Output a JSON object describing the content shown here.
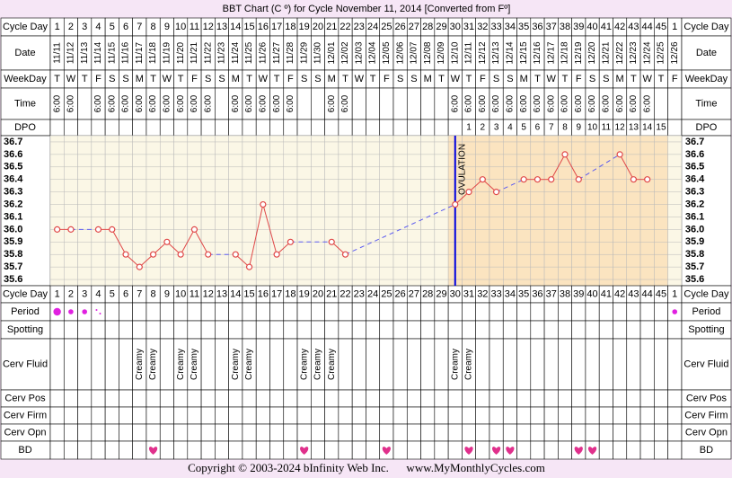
{
  "chart_data": {
    "type": "line",
    "title": "BBT Chart (C º) for Cycle November 11, 2014  [Converted from Fº]",
    "row_labels": {
      "cycle_day": "Cycle Day",
      "date": "Date",
      "weekday": "WeekDay",
      "time": "Time",
      "dpo": "DPO",
      "period": "Period",
      "spotting": "Spotting",
      "cerv_fluid": "Cerv Fluid",
      "cerv_pos": "Cerv Pos",
      "cerv_firm": "Cerv Firm",
      "cerv_opn": "Cerv Opn",
      "bd": "BD"
    },
    "categories": [
      1,
      2,
      3,
      4,
      5,
      6,
      7,
      8,
      9,
      10,
      11,
      12,
      13,
      14,
      15,
      16,
      17,
      18,
      19,
      20,
      21,
      22,
      23,
      24,
      25,
      26,
      27,
      28,
      29,
      30,
      31,
      32,
      33,
      34,
      35,
      36,
      37,
      38,
      39,
      40,
      41,
      42,
      43,
      44,
      45,
      1
    ],
    "dates": [
      "11/11",
      "11/12",
      "11/13",
      "11/14",
      "11/15",
      "11/16",
      "11/17",
      "11/18",
      "11/19",
      "11/20",
      "11/21",
      "11/22",
      "11/23",
      "11/24",
      "11/25",
      "11/26",
      "11/27",
      "11/28",
      "11/29",
      "11/30",
      "12/01",
      "12/02",
      "12/03",
      "12/04",
      "12/05",
      "12/06",
      "12/07",
      "12/08",
      "12/09",
      "12/10",
      "12/11",
      "12/12",
      "12/13",
      "12/14",
      "12/15",
      "12/16",
      "12/17",
      "12/18",
      "12/19",
      "12/20",
      "12/21",
      "12/22",
      "12/23",
      "12/24",
      "12/25",
      "12/26"
    ],
    "weekdays": [
      "T",
      "W",
      "T",
      "F",
      "S",
      "S",
      "M",
      "T",
      "W",
      "T",
      "F",
      "S",
      "S",
      "M",
      "T",
      "W",
      "T",
      "F",
      "S",
      "S",
      "M",
      "T",
      "W",
      "T",
      "F",
      "S",
      "S",
      "M",
      "T",
      "W",
      "T",
      "F",
      "S",
      "S",
      "M",
      "T",
      "W",
      "T",
      "F",
      "S",
      "S",
      "M",
      "T",
      "W",
      "T",
      "F"
    ],
    "times": [
      "6:00",
      "6:00",
      null,
      "6:00",
      "6:00",
      "6:00",
      "6:00",
      "6:00",
      "6:00",
      "6:00",
      "6:00",
      "6:00",
      null,
      "6:00",
      "6:00",
      "6:00",
      "6:00",
      "6:00",
      null,
      null,
      "6:00",
      "6:00",
      null,
      null,
      null,
      null,
      null,
      null,
      null,
      "6:00",
      "6:00",
      "6:00",
      "6:00",
      "6:00",
      "6:00",
      "6:00",
      "6:00",
      "6:00",
      "6:00",
      "6:00",
      "6:00",
      "6:00",
      "6:00",
      "6:00",
      null,
      null
    ],
    "dpo": [
      null,
      null,
      null,
      null,
      null,
      null,
      null,
      null,
      null,
      null,
      null,
      null,
      null,
      null,
      null,
      null,
      null,
      null,
      null,
      null,
      null,
      null,
      null,
      null,
      null,
      null,
      null,
      null,
      null,
      null,
      1,
      2,
      3,
      4,
      5,
      6,
      7,
      8,
      9,
      10,
      11,
      12,
      13,
      14,
      15,
      null
    ],
    "values": [
      36.0,
      36.0,
      null,
      36.0,
      36.0,
      35.8,
      35.7,
      35.8,
      35.9,
      35.8,
      36.0,
      35.8,
      null,
      35.8,
      35.7,
      36.2,
      35.8,
      35.9,
      null,
      null,
      35.9,
      35.8,
      null,
      null,
      null,
      null,
      null,
      null,
      null,
      36.2,
      36.3,
      36.4,
      36.3,
      null,
      36.4,
      36.4,
      36.4,
      36.6,
      36.4,
      null,
      null,
      36.6,
      36.4,
      36.4,
      null,
      null
    ],
    "color": "#e04848",
    "gap_color": "#5a5af0",
    "ylim": [
      35.55,
      36.75
    ],
    "yticks": [
      36.7,
      36.6,
      36.5,
      36.4,
      36.3,
      36.2,
      36.1,
      {
        "value": 36,
        "label": "36.0"
      },
      35.9,
      35.8,
      35.7,
      35.6
    ],
    "grid": true,
    "ovulation_day": 30,
    "ovulation_label": "OVULATION",
    "ovulation_color": "#0000e0",
    "period": [
      3,
      2,
      2,
      1,
      null,
      null,
      null,
      null,
      null,
      null,
      null,
      null,
      null,
      null,
      null,
      null,
      null,
      null,
      null,
      null,
      null,
      null,
      null,
      null,
      null,
      null,
      null,
      null,
      null,
      null,
      null,
      null,
      null,
      null,
      null,
      null,
      null,
      null,
      null,
      null,
      null,
      null,
      null,
      null,
      null,
      2
    ],
    "period_color": "#e020e0",
    "cerv_fluid": [
      null,
      null,
      null,
      null,
      null,
      null,
      "Creamy",
      "Creamy",
      null,
      "Creamy",
      "Creamy",
      null,
      null,
      "Creamy",
      "Creamy",
      null,
      null,
      null,
      "Creamy",
      "Creamy",
      "Creamy",
      null,
      null,
      null,
      null,
      null,
      null,
      null,
      null,
      "Creamy",
      "Creamy",
      null,
      null,
      null,
      null,
      null,
      null,
      null,
      null,
      null,
      null,
      null,
      null,
      null,
      null,
      null
    ],
    "bd_days": [
      8,
      19,
      25,
      31,
      33,
      34,
      39,
      40
    ],
    "bd_color": "#e0308c",
    "footer": "Copyright © 2003-2024 bInfinity Web Inc.      www.MyMonthlyCycles.com"
  }
}
